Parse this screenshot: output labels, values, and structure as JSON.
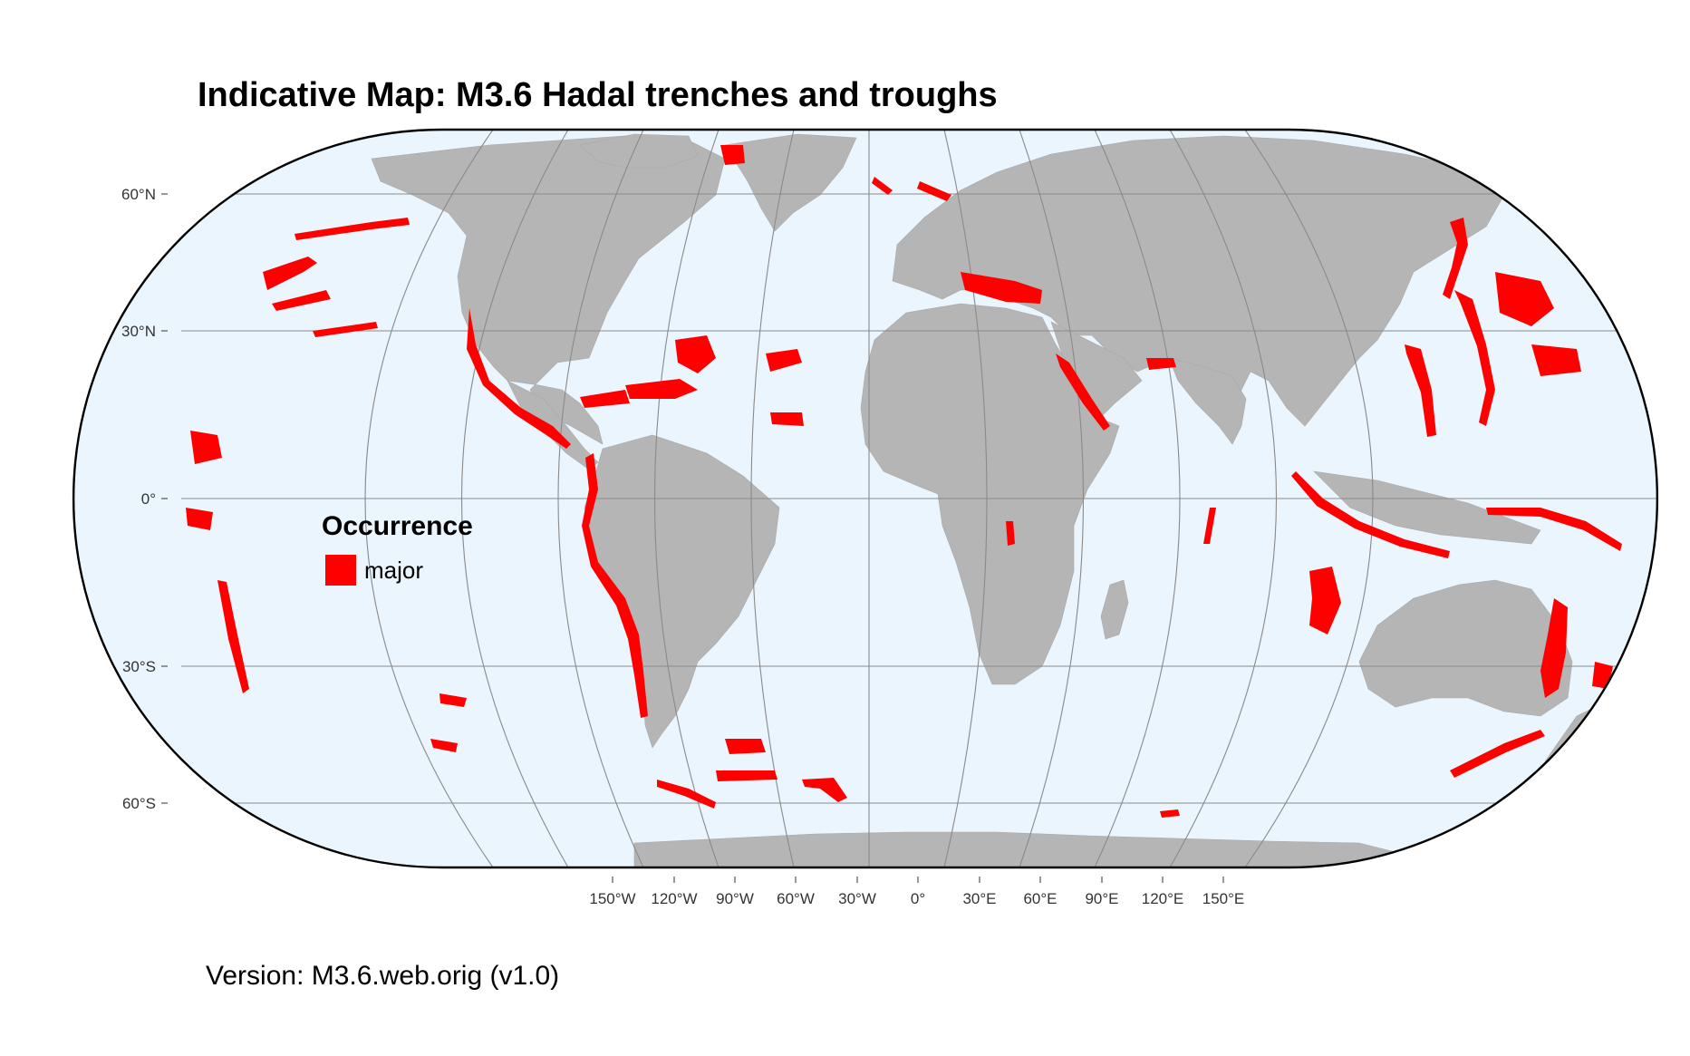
{
  "title": "Indicative Map: M3.6 Hadal trenches and troughs",
  "version_text": "Version: M3.6.web.orig (v1.0)",
  "legend": {
    "title": "Occurrence",
    "items": [
      {
        "label": "major",
        "color": "#ff0000"
      }
    ]
  },
  "colors": {
    "ocean": "#eaf5fd",
    "land": "#b5b5b5",
    "occurrence": "#ff0000",
    "graticule": "#8a8a8a",
    "outline": "#000000"
  },
  "axes": {
    "projection": "Robinson-like (pseudocylindrical)",
    "y_ticks": [
      {
        "label": "60°N"
      },
      {
        "label": "30°N"
      },
      {
        "label": "0°"
      },
      {
        "label": "30°S"
      },
      {
        "label": "60°S"
      }
    ],
    "x_ticks": [
      {
        "label": "150°W"
      },
      {
        "label": "120°W"
      },
      {
        "label": "90°W"
      },
      {
        "label": "60°W"
      },
      {
        "label": "30°W"
      },
      {
        "label": "0°"
      },
      {
        "label": "30°E"
      },
      {
        "label": "60°E"
      },
      {
        "label": "90°E"
      },
      {
        "label": "120°E"
      },
      {
        "label": "150°E"
      }
    ]
  }
}
